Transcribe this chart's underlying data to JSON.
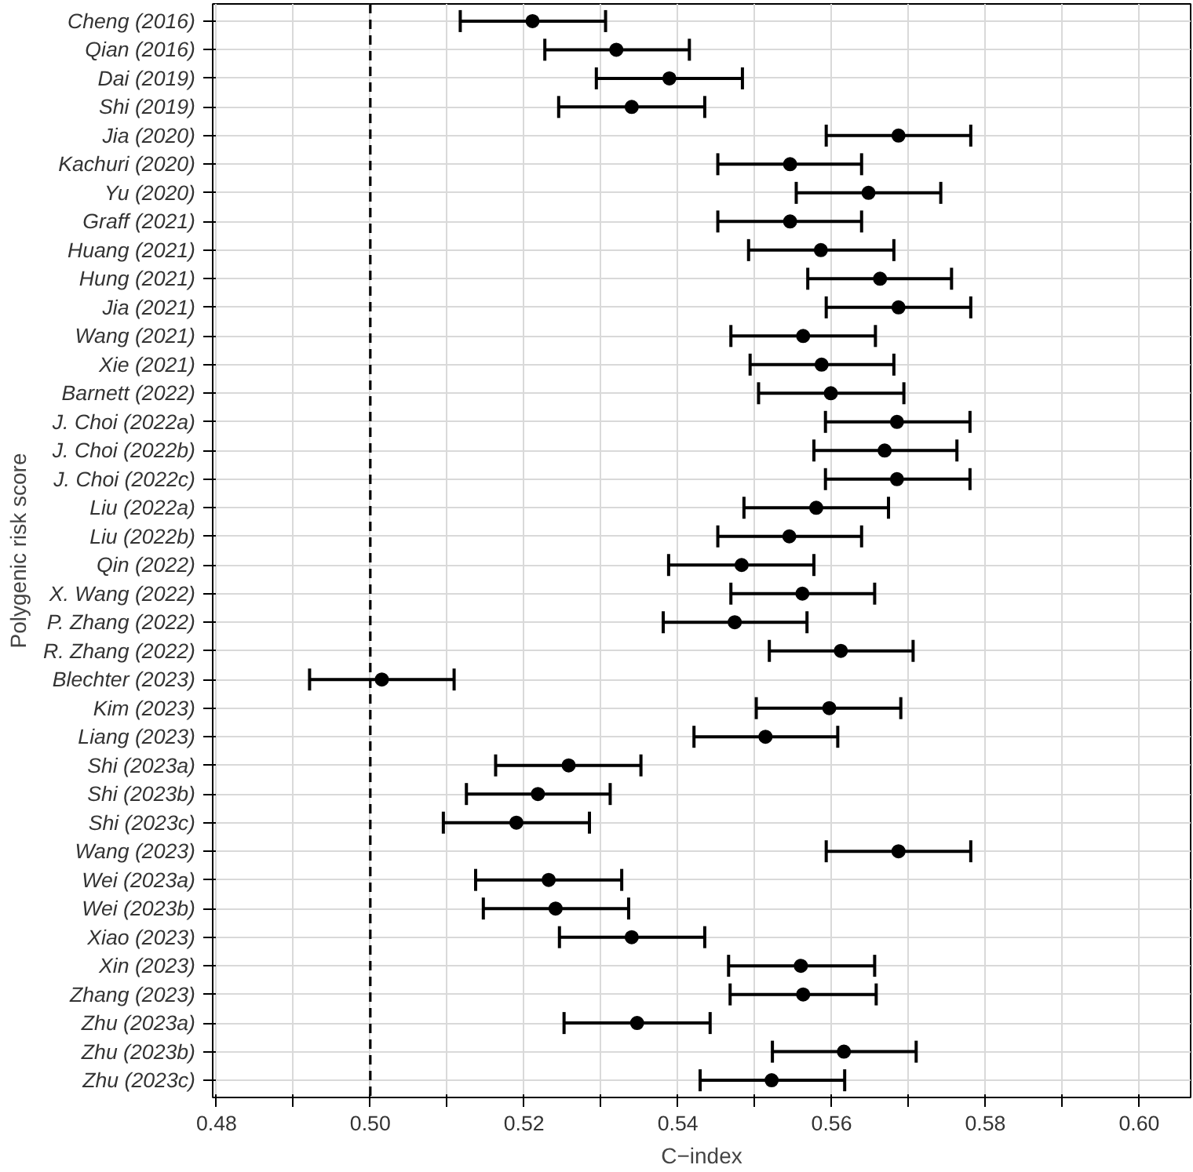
{
  "chart_data": {
    "type": "scatter",
    "orientation": "horizontal",
    "xlabel": "C−index",
    "ylabel": "Polygenic risk score",
    "categories": [
      "Cheng (2016)",
      "Qian (2016)",
      "Dai (2019)",
      "Shi (2019)",
      "Jia (2020)",
      "Kachuri (2020)",
      "Yu (2020)",
      "Graff (2021)",
      "Huang (2021)",
      "Hung (2021)",
      "Jia (2021)",
      "Wang (2021)",
      "Xie (2021)",
      "Barnett (2022)",
      "J. Choi (2022a)",
      "J. Choi (2022b)",
      "J. Choi (2022c)",
      "Liu (2022a)",
      "Liu (2022b)",
      "Qin (2022)",
      "X. Wang (2022)",
      "P. Zhang (2022)",
      "R. Zhang (2022)",
      "Blechter (2023)",
      "Kim (2023)",
      "Liang (2023)",
      "Shi (2023a)",
      "Shi (2023b)",
      "Shi (2023c)",
      "Wang (2023)",
      "Wei (2023a)",
      "Wei (2023b)",
      "Xiao (2023)",
      "Xin (2023)",
      "Zhang (2023)",
      "Zhu (2023a)",
      "Zhu (2023b)",
      "Zhu (2023c)"
    ],
    "color": "#000000",
    "values": [
      0.5211,
      0.532,
      0.5389,
      0.534,
      0.5687,
      0.5546,
      0.5648,
      0.5546,
      0.5586,
      0.5663,
      0.5687,
      0.5563,
      0.5587,
      0.5599,
      0.5685,
      0.5669,
      0.5685,
      0.558,
      0.5545,
      0.5483,
      0.5562,
      0.5474,
      0.5612,
      0.5015,
      0.5597,
      0.5514,
      0.5258,
      0.5218,
      0.519,
      0.5687,
      0.5232,
      0.5241,
      0.534,
      0.556,
      0.5563,
      0.5347,
      0.5616,
      0.5522
    ],
    "errors": [
      [
        0.5117,
        0.5306
      ],
      [
        0.5227,
        0.5415
      ],
      [
        0.5294,
        0.5484
      ],
      [
        0.5245,
        0.5435
      ],
      [
        0.5593,
        0.5781
      ],
      [
        0.5452,
        0.5639
      ],
      [
        0.5554,
        0.5742
      ],
      [
        0.5452,
        0.5639
      ],
      [
        0.5492,
        0.5681
      ],
      [
        0.5569,
        0.5756
      ],
      [
        0.5593,
        0.5781
      ],
      [
        0.5469,
        0.5657
      ],
      [
        0.5494,
        0.5681
      ],
      [
        0.5505,
        0.5694
      ],
      [
        0.5592,
        0.578
      ],
      [
        0.5577,
        0.5763
      ],
      [
        0.5592,
        0.578
      ],
      [
        0.5486,
        0.5674
      ],
      [
        0.5452,
        0.5639
      ],
      [
        0.5388,
        0.5577
      ],
      [
        0.5469,
        0.5656
      ],
      [
        0.5381,
        0.5568
      ],
      [
        0.5519,
        0.5706
      ],
      [
        0.4921,
        0.5109
      ],
      [
        0.5502,
        0.569
      ],
      [
        0.5421,
        0.5608
      ],
      [
        0.5163,
        0.5352
      ],
      [
        0.5125,
        0.5312
      ],
      [
        0.5095,
        0.5285
      ],
      [
        0.5593,
        0.5781
      ],
      [
        0.5137,
        0.5327
      ],
      [
        0.5147,
        0.5336
      ],
      [
        0.5246,
        0.5435
      ],
      [
        0.5466,
        0.5656
      ],
      [
        0.5468,
        0.5658
      ],
      [
        0.5252,
        0.5442
      ],
      [
        0.5523,
        0.571
      ],
      [
        0.5429,
        0.5617
      ]
    ],
    "xlim": [
      0.4795,
      0.6067
    ],
    "xticks": [
      0.48,
      {
        "value": 0.49,
        "label": null
      },
      {
        "value": 0.5,
        "label": "0.50"
      },
      {
        "value": 0.51,
        "label": null
      },
      0.52,
      {
        "value": 0.53,
        "label": null
      },
      0.54,
      {
        "value": 0.55,
        "label": null
      },
      0.56,
      {
        "value": 0.57,
        "label": null
      },
      0.58,
      {
        "value": 0.59,
        "label": null
      },
      {
        "value": 0.6,
        "label": "0.60"
      }
    ],
    "ref_lines": [
      {
        "axis": "x",
        "value": 0.5,
        "label": null,
        "color": "#000000",
        "line_style": "dashed"
      }
    ],
    "grid": true,
    "marker": "circle"
  }
}
